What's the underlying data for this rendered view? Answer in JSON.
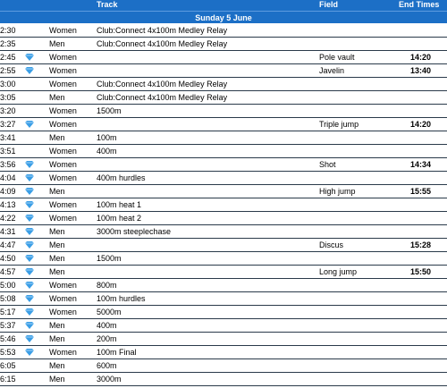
{
  "header": {
    "track": "Track",
    "field": "Field",
    "end_times": "End Times",
    "date": "Sunday 5 June"
  },
  "rows": [
    {
      "time": "2:30",
      "gender": "Women",
      "track": "Club:Connect 4x100m Medley Relay"
    },
    {
      "time": "2:35",
      "gender": "Men",
      "track": "Club:Connect 4x100m Medley Relay"
    },
    {
      "time": "2:45",
      "diamond": true,
      "gender": "Women",
      "field": "Pole vault",
      "end": "14:20"
    },
    {
      "time": "2:55",
      "diamond": true,
      "gender": "Women",
      "field": "Javelin",
      "end": "13:40"
    },
    {
      "time": "3:00",
      "gender": "Women",
      "track": "Club:Connect 4x100m Medley Relay"
    },
    {
      "time": "3:05",
      "gender": "Men",
      "track": "Club:Connect 4x100m Medley Relay"
    },
    {
      "time": "3:20",
      "gender": "Women",
      "track": "1500m"
    },
    {
      "time": "3:27",
      "diamond": true,
      "gender": "Women",
      "field": "Triple jump",
      "end": "14:20"
    },
    {
      "time": "3:41",
      "gender": "Men",
      "track": "100m"
    },
    {
      "time": "3:51",
      "gender": "Women",
      "track": "400m"
    },
    {
      "time": "3:56",
      "diamond": true,
      "gender": "Women",
      "field": "Shot",
      "end": "14:34"
    },
    {
      "time": "4:04",
      "diamond": true,
      "gender": "Women",
      "track": "400m hurdles"
    },
    {
      "time": "4:09",
      "diamond": true,
      "gender": "Men",
      "field": "High jump",
      "end": "15:55"
    },
    {
      "time": "4:13",
      "diamond": true,
      "gender": "Women",
      "track": "100m heat 1"
    },
    {
      "time": "4:22",
      "diamond": true,
      "gender": "Women",
      "track": "100m heat 2"
    },
    {
      "time": "4:31",
      "diamond": true,
      "gender": "Men",
      "track": "3000m steeplechase"
    },
    {
      "time": "4:47",
      "diamond": true,
      "gender": "Men",
      "field": "Discus",
      "end": "15:28"
    },
    {
      "time": "4:50",
      "diamond": true,
      "gender": "Men",
      "track": "1500m"
    },
    {
      "time": "4:57",
      "diamond": true,
      "gender": "Men",
      "field": "Long jump",
      "end": "15:50"
    },
    {
      "time": "5:00",
      "diamond": true,
      "gender": "Women",
      "track": "800m"
    },
    {
      "time": "5:08",
      "diamond": true,
      "gender": "Women",
      "track": "100m hurdles"
    },
    {
      "time": "5:17",
      "diamond": true,
      "gender": "Women",
      "track": "5000m"
    },
    {
      "time": "5:37",
      "diamond": true,
      "gender": "Men",
      "track": "400m"
    },
    {
      "time": "5:46",
      "diamond": true,
      "gender": "Men",
      "track": "200m"
    },
    {
      "time": "5:53",
      "diamond": true,
      "gender": "Women",
      "track": "100m Final"
    },
    {
      "time": "6:05",
      "gender": "Men",
      "track": "600m"
    },
    {
      "time": "6:15",
      "gender": "Men",
      "track": "3000m"
    }
  ]
}
